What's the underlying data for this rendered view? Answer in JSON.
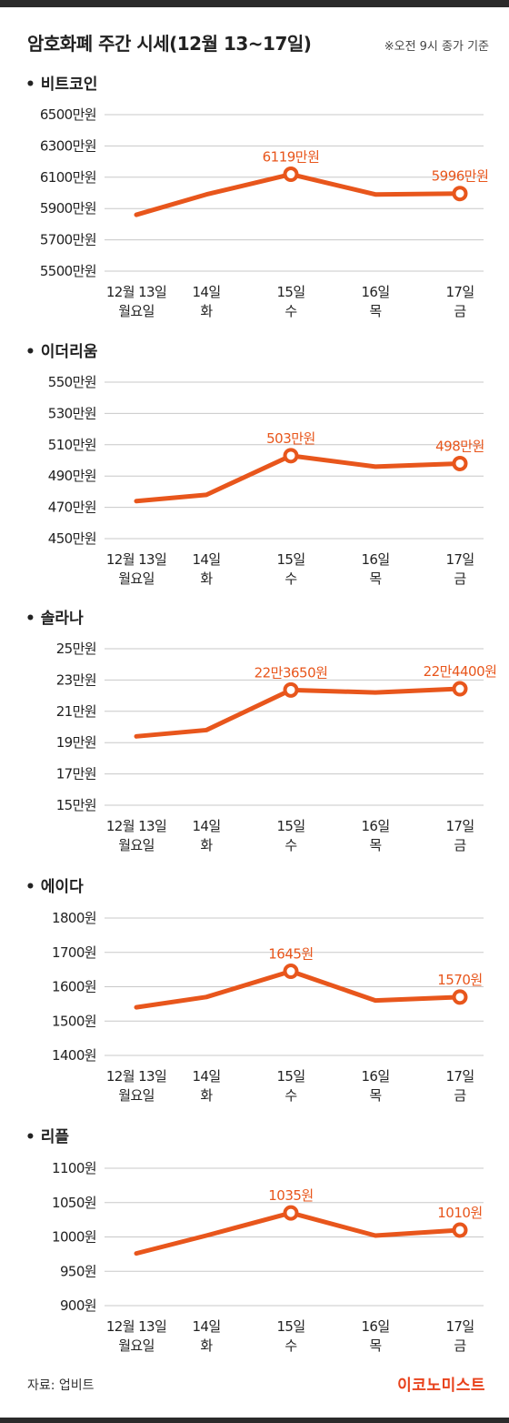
{
  "header": {
    "title": "암호화폐 주간 시세(12월 13~17일)",
    "note": "※오전 9시 종가 기준"
  },
  "footer": {
    "source": "자료: 업비트",
    "brand": "이코노미스트"
  },
  "colors": {
    "accent": "#e8561c",
    "brand": "#e8421c",
    "grid": "#c8c8c8",
    "bar": "#2b2b2b"
  },
  "chart_data": [
    {
      "type": "line",
      "title": "• 비트코인",
      "categories": [
        [
          "12월 13일",
          "월요일"
        ],
        [
          "14일",
          "화"
        ],
        [
          "15일",
          "수"
        ],
        [
          "16일",
          "목"
        ],
        [
          "17일",
          "금"
        ]
      ],
      "yticks": [
        "6500만원",
        "6300만원",
        "6100만원",
        "5900만원",
        "5700만원",
        "5500만원"
      ],
      "ylim": [
        5500,
        6500
      ],
      "values": [
        5860,
        5990,
        6119,
        5990,
        5996
      ],
      "labels": [
        null,
        null,
        "6119만원",
        null,
        "5996만원"
      ],
      "markers": [
        false,
        false,
        true,
        false,
        true
      ]
    },
    {
      "type": "line",
      "title": "• 이더리움",
      "categories": [
        [
          "12월 13일",
          "월요일"
        ],
        [
          "14일",
          "화"
        ],
        [
          "15일",
          "수"
        ],
        [
          "16일",
          "목"
        ],
        [
          "17일",
          "금"
        ]
      ],
      "yticks": [
        "550만원",
        "530만원",
        "510만원",
        "490만원",
        "470만원",
        "450만원"
      ],
      "ylim": [
        450,
        550
      ],
      "values": [
        474,
        478,
        503,
        496,
        498
      ],
      "labels": [
        null,
        null,
        "503만원",
        null,
        "498만원"
      ],
      "markers": [
        false,
        false,
        true,
        false,
        true
      ]
    },
    {
      "type": "line",
      "title": "• 솔라나",
      "categories": [
        [
          "12월 13일",
          "월요일"
        ],
        [
          "14일",
          "화"
        ],
        [
          "15일",
          "수"
        ],
        [
          "16일",
          "목"
        ],
        [
          "17일",
          "금"
        ]
      ],
      "yticks": [
        "25만원",
        "23만원",
        "21만원",
        "19만원",
        "17만원",
        "15만원"
      ],
      "ylim": [
        15,
        25
      ],
      "values": [
        19.4,
        19.8,
        22.365,
        22.2,
        22.44
      ],
      "labels": [
        null,
        null,
        "22만3650원",
        null,
        "22만4400원"
      ],
      "markers": [
        false,
        false,
        true,
        false,
        true
      ]
    },
    {
      "type": "line",
      "title": "• 에이다",
      "categories": [
        [
          "12월 13일",
          "월요일"
        ],
        [
          "14일",
          "화"
        ],
        [
          "15일",
          "수"
        ],
        [
          "16일",
          "목"
        ],
        [
          "17일",
          "금"
        ]
      ],
      "yticks": [
        "1800원",
        "1700원",
        "1600원",
        "1500원",
        "1400원"
      ],
      "ylim": [
        1400,
        1800
      ],
      "values": [
        1540,
        1570,
        1645,
        1560,
        1570
      ],
      "labels": [
        null,
        null,
        "1645원",
        null,
        "1570원"
      ],
      "markers": [
        false,
        false,
        true,
        false,
        true
      ]
    },
    {
      "type": "line",
      "title": "• 리플",
      "categories": [
        [
          "12월 13일",
          "월요일"
        ],
        [
          "14일",
          "화"
        ],
        [
          "15일",
          "수"
        ],
        [
          "16일",
          "목"
        ],
        [
          "17일",
          "금"
        ]
      ],
      "yticks": [
        "1100원",
        "1050원",
        "1000원",
        "950원",
        "900원"
      ],
      "ylim": [
        900,
        1100
      ],
      "values": [
        976,
        1002,
        1035,
        1002,
        1010
      ],
      "labels": [
        null,
        null,
        "1035원",
        null,
        "1010원"
      ],
      "markers": [
        false,
        false,
        true,
        false,
        true
      ]
    }
  ]
}
